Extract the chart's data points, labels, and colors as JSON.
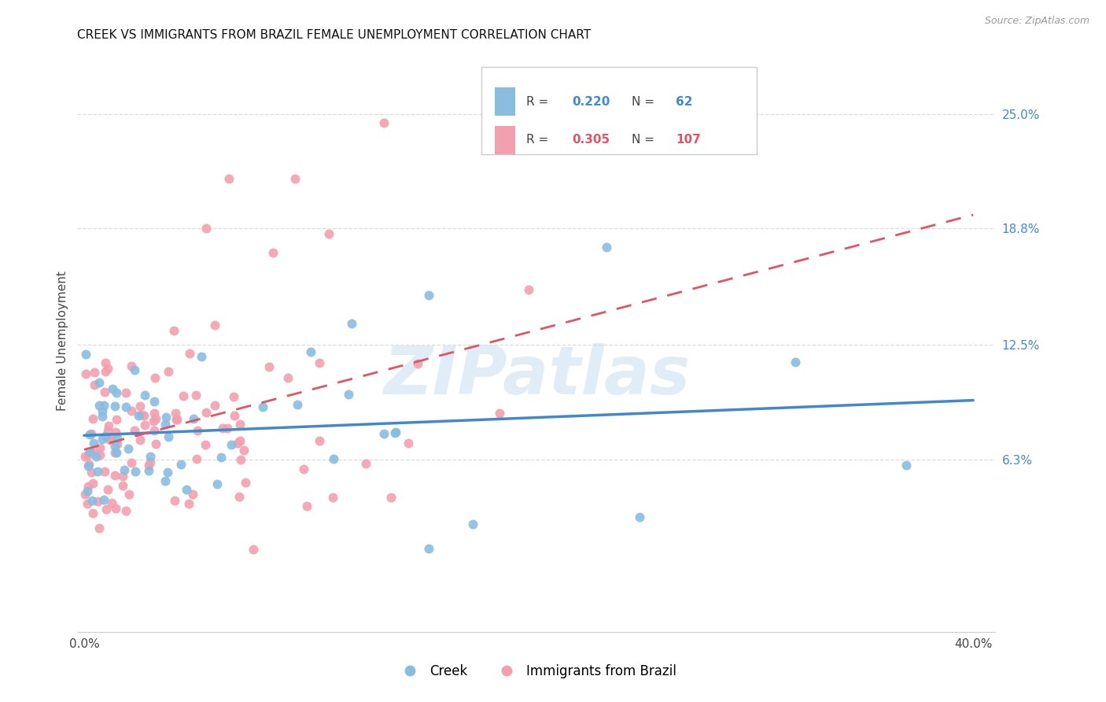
{
  "title": "CREEK VS IMMIGRANTS FROM BRAZIL FEMALE UNEMPLOYMENT CORRELATION CHART",
  "source": "Source: ZipAtlas.com",
  "ylabel": "Female Unemployment",
  "ytick_labels": [
    "25.0%",
    "18.8%",
    "12.5%",
    "6.3%"
  ],
  "ytick_values": [
    0.25,
    0.188,
    0.125,
    0.063
  ],
  "xtick_labels": [
    "0.0%",
    "40.0%"
  ],
  "xtick_values": [
    0.0,
    0.4
  ],
  "xlim": [
    -0.003,
    0.41
  ],
  "ylim": [
    -0.03,
    0.285
  ],
  "creek_R": "0.220",
  "creek_N": "62",
  "brazil_R": "0.305",
  "brazil_N": "107",
  "creek_color": "#88bde0",
  "brazil_color": "#f2a0b0",
  "creek_line_color": "#4488cc",
  "brazil_line_color": "#dd5566",
  "grid_color": "#dddddd",
  "bg_color": "#ffffff",
  "title_color": "#111111",
  "ytick_color": "#4488cc",
  "source_color": "#999999",
  "watermark": "ZIPatlas",
  "watermark_color": "#c8dff0",
  "legend_box_color": "#dddddd",
  "scatter_size": 75,
  "creek_seed": 42,
  "brazil_seed": 99
}
